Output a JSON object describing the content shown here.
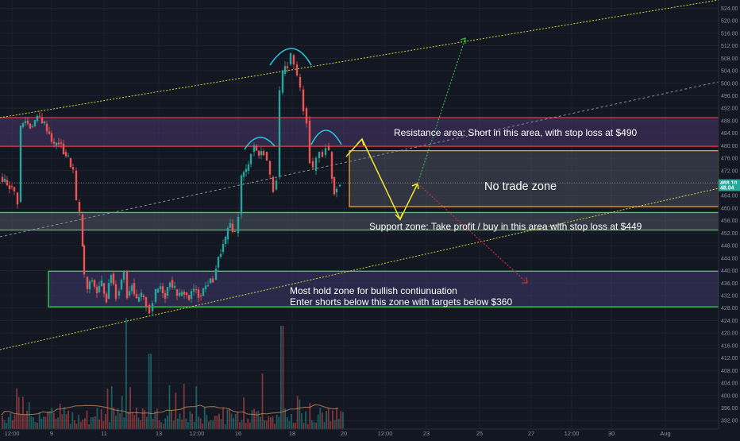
{
  "chart_data": {
    "type": "candlestick",
    "y_axis_ticks": [
      392,
      396,
      400,
      404,
      408,
      412,
      416,
      420,
      424,
      428,
      432,
      436,
      440,
      444,
      448,
      452,
      456,
      460,
      464,
      468,
      472,
      476,
      480,
      484,
      488,
      492,
      496,
      500,
      504,
      508,
      512,
      516,
      520,
      524
    ],
    "ylim": [
      390,
      526
    ],
    "x_axis_ticks": [
      "12:00",
      "9",
      "11",
      "13",
      "12:00",
      "16",
      "18",
      "20",
      "12:00",
      "23",
      "25",
      "27",
      "12:00",
      "30",
      "Aug"
    ],
    "price_tags": [
      {
        "label": "468.10",
        "value": 468.1,
        "color": "#26a69a"
      },
      {
        "label": "48.04",
        "value": 466.6,
        "color": "#26a69a"
      }
    ],
    "zones": {
      "resistance": {
        "low": 479.8,
        "high": 489.0
      },
      "no_trade": {
        "low": 460.5,
        "high": 478.4
      },
      "support": {
        "low": 453.0,
        "high": 458.6
      },
      "hold": {
        "low": 428.4,
        "high": 439.8
      }
    },
    "annotations": {
      "resistance": "Resistance area: Short in this area, with stop loss at $490",
      "no_trade": "No trade zone",
      "support": "Support zone: Take profit / buy in this area with stop loss at $449",
      "hold_line1": "Most hold zone for bullish contiunuation",
      "hold_line2": "Enter shorts below this zone with targets below $360"
    },
    "colors": {
      "background": "#131722",
      "up": "#26a69a",
      "down": "#ef5350",
      "resistance_line": "#e53946",
      "support_line": "#3ad14f",
      "channel": "#d8d43a",
      "no_trade_border": "#f0a020",
      "projection": "#f2e52c",
      "arc": "#27c5d8",
      "target_up": "#2db84a",
      "target_down": "#c9303a"
    }
  }
}
